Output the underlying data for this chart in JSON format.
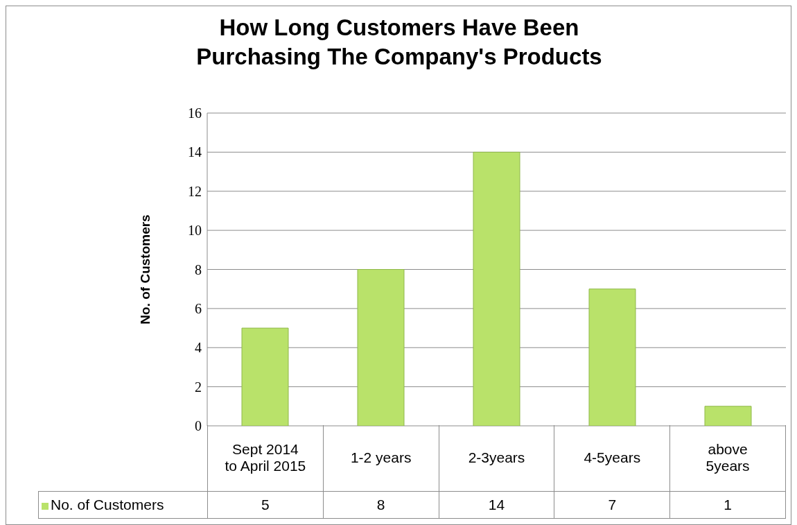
{
  "chart_data": {
    "type": "bar",
    "title": "How Long Customers Have Been Purchasing The Company's Products",
    "ylabel": "No. of Customers",
    "categories": [
      "Sept 2014 to April 2015",
      "1-2 years",
      "2-3years",
      "4-5years",
      "above 5years"
    ],
    "series": [
      {
        "name": "No. of Customers",
        "color": "#b9e26a",
        "values": [
          5,
          8,
          14,
          7,
          1
        ]
      }
    ],
    "ylim": [
      0,
      16
    ],
    "yticks": [
      0,
      2,
      4,
      6,
      8,
      10,
      12,
      14,
      16
    ],
    "grid": "y",
    "legend": "bottom",
    "data_labels": true
  }
}
